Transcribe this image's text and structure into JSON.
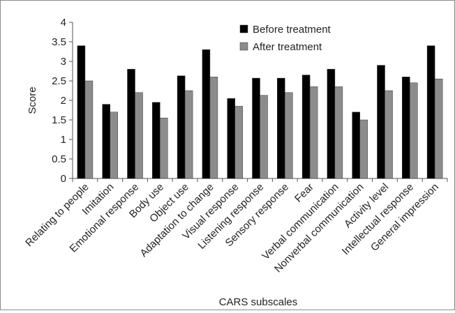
{
  "chart_data": {
    "type": "bar",
    "xlabel": "CARS subscales",
    "ylabel": "Score",
    "ylim": [
      0,
      4
    ],
    "yticks": [
      "0",
      "0.5",
      "1",
      "1.5",
      "2",
      "2.5",
      "3",
      "3.5",
      "4"
    ],
    "ytick_values": [
      0,
      0.5,
      1,
      1.5,
      2,
      2.5,
      3,
      3.5,
      4
    ],
    "grid": false,
    "legend_position": "top-right",
    "categories": [
      "Relating to people",
      "Imitation",
      "Emotional response",
      "Body use",
      "Object use",
      "Adaptation to change",
      "Visual response",
      "Listening response",
      "Sensory response",
      "Fear",
      "Verbal communication",
      "Nonverbal communication",
      "Activity level",
      "Intellectual response",
      "General impression"
    ],
    "series": [
      {
        "name": "Before treatment",
        "color": "#000000",
        "values": [
          3.4,
          1.9,
          2.8,
          1.95,
          2.63,
          3.3,
          2.05,
          2.57,
          2.57,
          2.65,
          2.8,
          1.7,
          2.9,
          2.6,
          3.4
        ]
      },
      {
        "name": "After treatment",
        "color": "#8c8c8c",
        "values": [
          2.5,
          1.7,
          2.2,
          1.55,
          2.25,
          2.6,
          1.85,
          2.13,
          2.2,
          2.35,
          2.35,
          1.5,
          2.25,
          2.45,
          2.55
        ]
      }
    ]
  }
}
